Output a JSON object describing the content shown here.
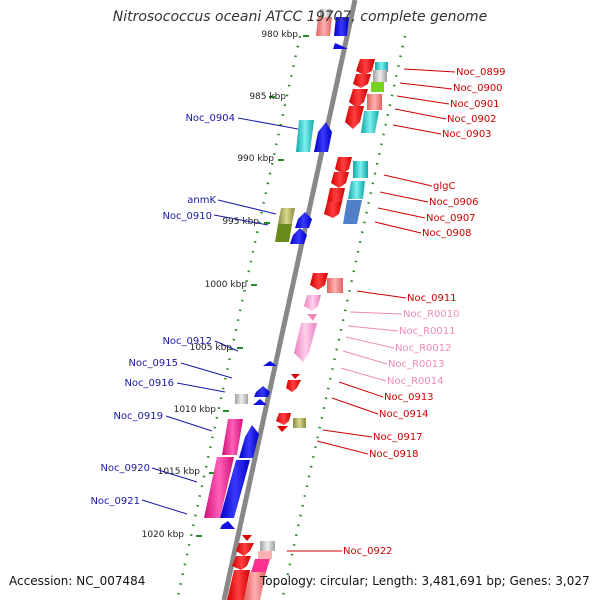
{
  "title": "Nitrosococcus oceani ATCC 19707, complete genome",
  "footer": {
    "accession": "Accession: NC_007484",
    "summary": "Topology: circular; Length: 3,481,691 bp; Genes: 3,027"
  },
  "colors": {
    "backbone": "#888888",
    "ticks": "#2a8a2a",
    "left_label": "#1a1aa8",
    "right_label": "#cc0000",
    "rna_label": "#f08ab8"
  },
  "scale_labels": [
    "980 kbp",
    "985 kbp",
    "990 kbp",
    "995 kbp",
    "1000 kbp",
    "1005 kbp",
    "1010 kbp",
    "1015 kbp",
    "1020 kbp"
  ],
  "left_genes": [
    "Noc_0904",
    "anmK",
    "Noc_0910",
    "Noc_0912",
    "Noc_0915",
    "Noc_0916",
    "Noc_0919",
    "Noc_0920",
    "Noc_0921"
  ],
  "right_genes": [
    "Noc_0899",
    "Noc_0900",
    "Noc_0901",
    "Noc_0902",
    "Noc_0903",
    "glgC",
    "Noc_0906",
    "Noc_0907",
    "Noc_0908",
    "Noc_0911",
    "Noc_0913",
    "Noc_0914",
    "Noc_0917",
    "Noc_0918",
    "Noc_0922"
  ],
  "rna_genes": [
    "Noc_R0010",
    "Noc_R0011",
    "Noc_R0012",
    "Noc_R0013",
    "Noc_R0014"
  ]
}
